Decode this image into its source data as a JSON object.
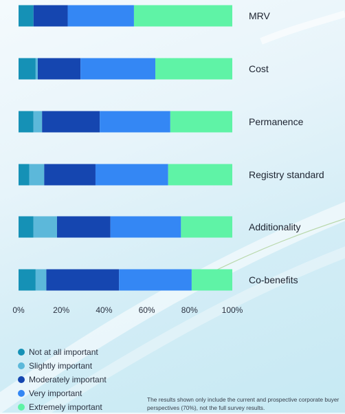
{
  "chart_data": {
    "type": "bar",
    "orientation": "horizontal",
    "stacked": true,
    "categories": [
      "MRV",
      "Cost",
      "Permanence",
      "Registry standard",
      "Additionality",
      "Co-benefits"
    ],
    "series": [
      {
        "name": "Not at all important",
        "color": "#1591b6",
        "values": [
          7,
          8,
          7,
          5,
          7,
          8
        ]
      },
      {
        "name": "Slightly important",
        "color": "#5cb8da",
        "values": [
          0,
          1,
          4,
          7,
          11,
          5
        ]
      },
      {
        "name": "Moderately important",
        "color": "#1546b0",
        "values": [
          16,
          20,
          27,
          24,
          25,
          34
        ]
      },
      {
        "name": "Very important",
        "color": "#3487f4",
        "values": [
          31,
          35,
          33,
          34,
          33,
          34
        ]
      },
      {
        "name": "Extremely important",
        "color": "#5ff3a6",
        "values": [
          46,
          36,
          29,
          30,
          24,
          19
        ]
      }
    ],
    "xlim": [
      0,
      100
    ],
    "xticks": [
      "0%",
      "20%",
      "40%",
      "60%",
      "80%",
      "100%"
    ],
    "grid": false,
    "legend_position": "bottom-left"
  },
  "footnote": "The results shown only include the current and prospective corporate buyer perspectives (70%), not the full survey results."
}
